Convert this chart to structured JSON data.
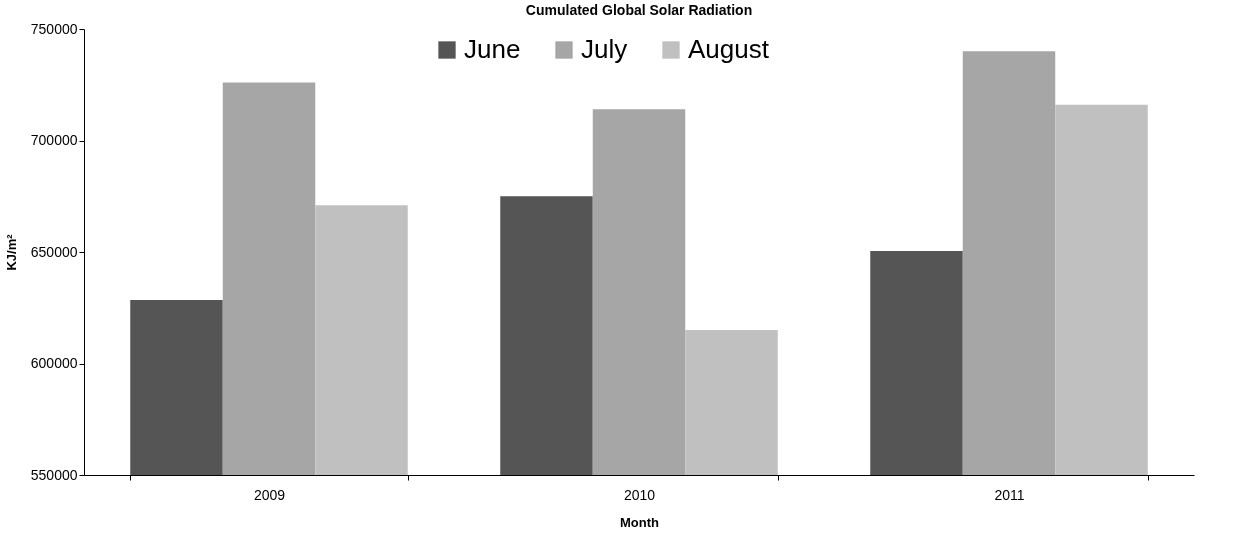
{
  "chart_data": {
    "type": "bar",
    "title": "Cumulated Global Solar Radiation",
    "xlabel": "Month",
    "ylabel": "KJ/m²",
    "categories": [
      "2009",
      "2010",
      "2011"
    ],
    "series": [
      {
        "name": "June",
        "color": "#555555",
        "values": [
          628500,
          675000,
          650500
        ]
      },
      {
        "name": "July",
        "color": "#a6a6a6",
        "values": [
          726000,
          714000,
          740000
        ]
      },
      {
        "name": "August",
        "color": "#c0c0c0",
        "values": [
          671000,
          615000,
          716000
        ]
      }
    ],
    "ylim": [
      550000,
      750000
    ],
    "yticks": [
      550000,
      600000,
      650000,
      700000,
      750000
    ],
    "grid": false,
    "legend": "top"
  }
}
